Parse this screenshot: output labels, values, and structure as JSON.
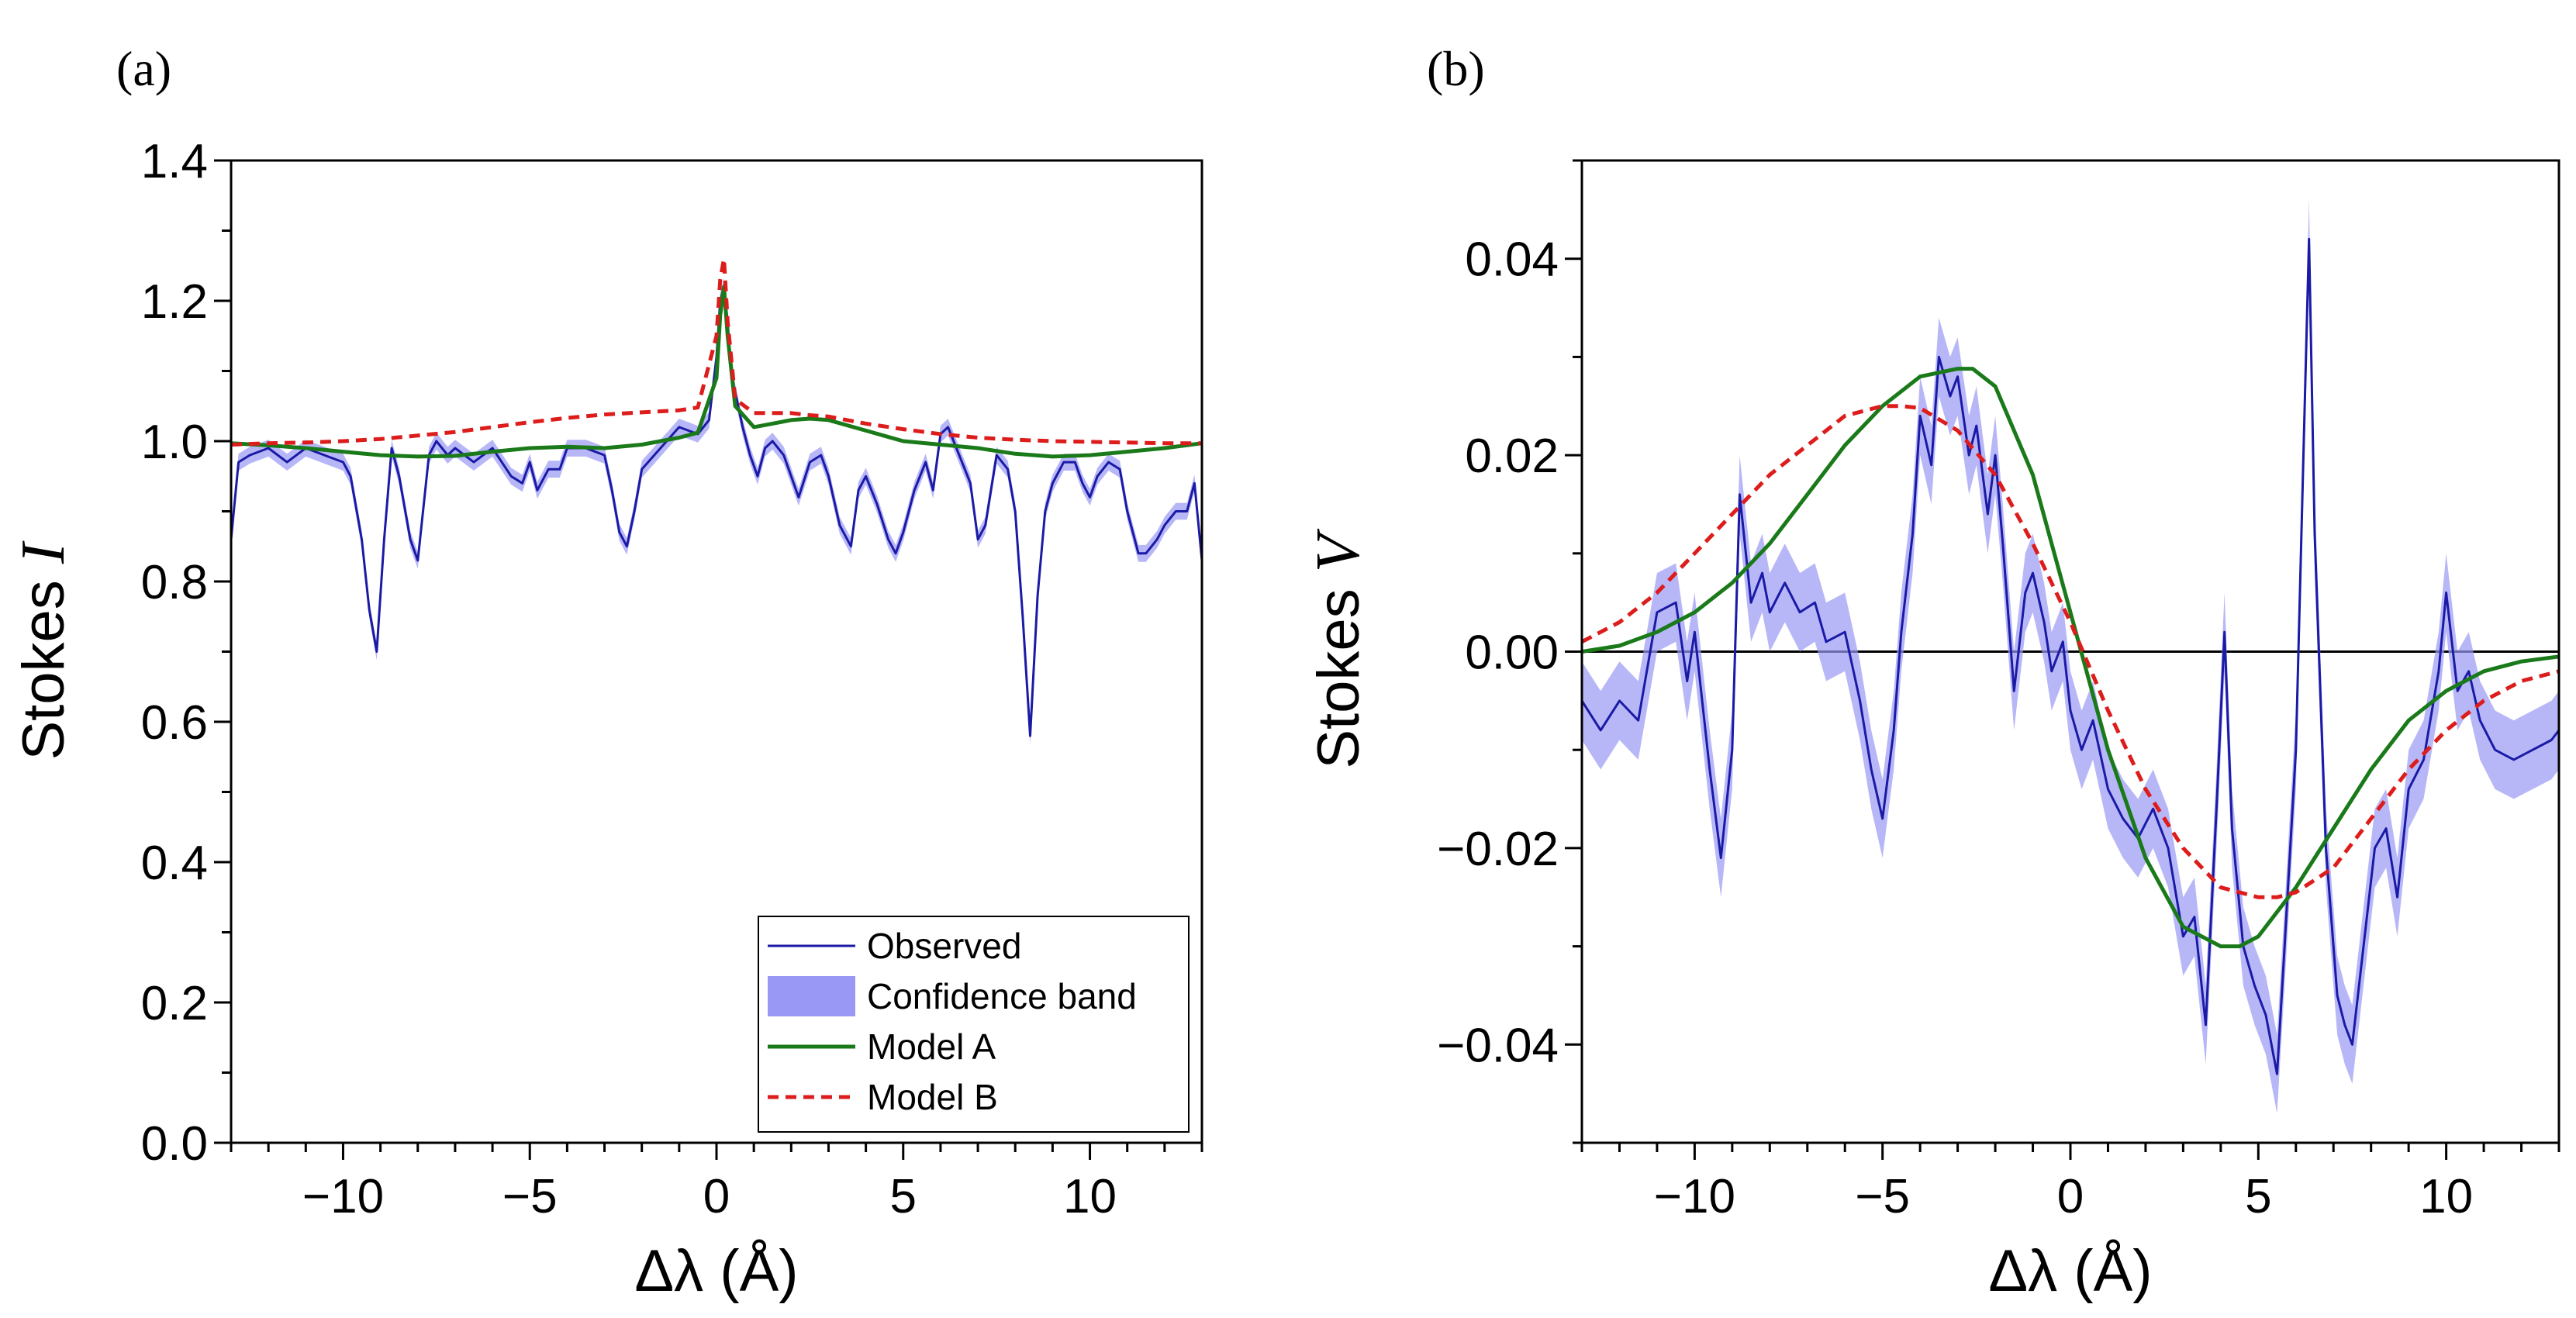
{
  "chart_data": [
    {
      "panel_label": "(a)",
      "type": "line",
      "xlabel": "Δλ (Å)",
      "ylabel_prefix": "Stokes",
      "ylabel_symbol": "I",
      "xlim": [
        -13,
        13
      ],
      "ylim": [
        0.0,
        1.4
      ],
      "xticks": [
        -10,
        -5,
        0,
        5,
        10
      ],
      "xtick_labels": [
        "−10",
        "−5",
        "0",
        "5",
        "10"
      ],
      "yticks": [
        0.0,
        0.2,
        0.4,
        0.6,
        0.8,
        1.0,
        1.2,
        1.4
      ],
      "ytick_labels": [
        "0.0",
        "0.2",
        "0.4",
        "0.6",
        "0.8",
        "1.0",
        "1.2",
        "1.4"
      ],
      "legend": {
        "placement": "bottom-right",
        "entries": [
          "Observed",
          "Confidence band",
          "Model A",
          "Model B"
        ]
      },
      "series": [
        {
          "name": "Observed",
          "color": "#1a1aa6",
          "x": [
            -13.0,
            -12.8,
            -12.5,
            -12.0,
            -11.5,
            -11.0,
            -10.5,
            -10.0,
            -9.8,
            -9.5,
            -9.3,
            -9.1,
            -8.9,
            -8.7,
            -8.5,
            -8.2,
            -8.0,
            -7.7,
            -7.5,
            -7.2,
            -7.0,
            -6.5,
            -6.0,
            -5.5,
            -5.2,
            -5.0,
            -4.8,
            -4.5,
            -4.2,
            -4.0,
            -3.5,
            -3.0,
            -2.8,
            -2.6,
            -2.4,
            -2.2,
            -2.0,
            -1.5,
            -1.0,
            -0.5,
            -0.2,
            0.0,
            0.1,
            0.2,
            0.3,
            0.4,
            0.5,
            0.7,
            0.9,
            1.1,
            1.3,
            1.5,
            1.8,
            2.0,
            2.2,
            2.5,
            2.8,
            3.0,
            3.3,
            3.6,
            3.8,
            4.0,
            4.3,
            4.6,
            4.8,
            5.0,
            5.3,
            5.6,
            5.8,
            6.0,
            6.2,
            6.5,
            6.8,
            7.0,
            7.2,
            7.5,
            7.8,
            8.0,
            8.2,
            8.4,
            8.6,
            8.8,
            9.0,
            9.3,
            9.6,
            9.8,
            10.0,
            10.2,
            10.5,
            10.8,
            11.0,
            11.3,
            11.5,
            11.8,
            12.0,
            12.3,
            12.6,
            12.8,
            13.0
          ],
          "values": [
            0.86,
            0.97,
            0.98,
            0.99,
            0.97,
            0.99,
            0.98,
            0.97,
            0.95,
            0.86,
            0.76,
            0.7,
            0.86,
            0.99,
            0.95,
            0.86,
            0.83,
            0.98,
            1.0,
            0.98,
            0.99,
            0.97,
            0.99,
            0.95,
            0.94,
            0.97,
            0.93,
            0.96,
            0.96,
            0.99,
            0.99,
            0.98,
            0.93,
            0.87,
            0.85,
            0.9,
            0.96,
            0.99,
            1.02,
            1.01,
            1.03,
            1.12,
            1.2,
            1.22,
            1.17,
            1.09,
            1.07,
            1.02,
            0.98,
            0.95,
            0.99,
            1.0,
            0.98,
            0.95,
            0.92,
            0.97,
            0.98,
            0.95,
            0.88,
            0.85,
            0.93,
            0.95,
            0.91,
            0.86,
            0.84,
            0.87,
            0.93,
            0.97,
            0.93,
            1.01,
            1.02,
            0.98,
            0.94,
            0.86,
            0.88,
            0.98,
            0.96,
            0.9,
            0.75,
            0.58,
            0.78,
            0.9,
            0.94,
            0.97,
            0.97,
            0.94,
            0.92,
            0.95,
            0.97,
            0.96,
            0.9,
            0.84,
            0.84,
            0.86,
            0.88,
            0.9,
            0.9,
            0.94,
            0.83
          ]
        },
        {
          "name": "Confidence band",
          "color": "#9999f5",
          "half_width": 0.012
        },
        {
          "name": "Model A",
          "color": "#1a7a1a",
          "x": [
            -13,
            -12,
            -11,
            -10,
            -9,
            -8,
            -7,
            -6,
            -5,
            -4,
            -3,
            -2,
            -1,
            -0.5,
            0.0,
            0.1,
            0.2,
            0.3,
            0.5,
            1.0,
            1.5,
            2.0,
            2.5,
            3.0,
            4.0,
            5.0,
            6.0,
            7.0,
            8.0,
            9.0,
            10.0,
            11.0,
            12.0,
            13.0
          ],
          "values": [
            0.997,
            0.994,
            0.99,
            0.985,
            0.98,
            0.978,
            0.979,
            0.985,
            0.99,
            0.992,
            0.99,
            0.995,
            1.005,
            1.012,
            1.09,
            1.18,
            1.22,
            1.15,
            1.05,
            1.02,
            1.025,
            1.03,
            1.032,
            1.03,
            1.015,
            1.0,
            0.995,
            0.99,
            0.982,
            0.978,
            0.98,
            0.985,
            0.99,
            0.997
          ]
        },
        {
          "name": "Model B",
          "color": "#dd1c1c",
          "x": [
            -13,
            -12,
            -11,
            -10,
            -9,
            -8,
            -7,
            -6,
            -5,
            -4,
            -3,
            -2,
            -1,
            -0.5,
            0.0,
            0.1,
            0.2,
            0.3,
            0.5,
            1.0,
            1.5,
            2.0,
            2.5,
            3.0,
            4.0,
            5.0,
            6.0,
            7.0,
            8.0,
            9.0,
            10.0,
            11.0,
            12.0,
            13.0
          ],
          "values": [
            0.995,
            0.997,
            0.998,
            1.0,
            1.003,
            1.008,
            1.013,
            1.02,
            1.027,
            1.033,
            1.038,
            1.041,
            1.044,
            1.048,
            1.15,
            1.23,
            1.26,
            1.17,
            1.06,
            1.04,
            1.04,
            1.04,
            1.037,
            1.035,
            1.025,
            1.017,
            1.01,
            1.005,
            1.002,
            1.0,
            0.999,
            0.998,
            0.997,
            0.997
          ]
        }
      ]
    },
    {
      "panel_label": "(b)",
      "type": "line",
      "xlabel": "Δλ (Å)",
      "ylabel_prefix": "Stokes",
      "ylabel_symbol": "V",
      "xlim": [
        -13,
        13
      ],
      "ylim": [
        -0.05,
        0.05
      ],
      "xticks": [
        -10,
        -5,
        0,
        5,
        10
      ],
      "xtick_labels": [
        "−10",
        "−5",
        "0",
        "5",
        "10"
      ],
      "yticks": [
        -0.04,
        -0.02,
        0.0,
        0.02,
        0.04
      ],
      "ytick_labels": [
        "−0.04",
        "−0.02",
        "0.00",
        "0.02",
        "0.04"
      ],
      "zero_line": true,
      "series": [
        {
          "name": "Observed",
          "color": "#1a1aa6",
          "x": [
            -13.0,
            -12.5,
            -12.0,
            -11.5,
            -11.0,
            -10.5,
            -10.2,
            -10.0,
            -9.6,
            -9.3,
            -9.0,
            -8.8,
            -8.5,
            -8.2,
            -8.0,
            -7.6,
            -7.2,
            -6.8,
            -6.5,
            -6.0,
            -5.6,
            -5.3,
            -5.0,
            -4.7,
            -4.5,
            -4.2,
            -4.0,
            -3.7,
            -3.5,
            -3.2,
            -3.0,
            -2.7,
            -2.5,
            -2.2,
            -2.0,
            -1.8,
            -1.5,
            -1.2,
            -1.0,
            -0.7,
            -0.5,
            -0.2,
            0.0,
            0.3,
            0.6,
            1.0,
            1.4,
            1.8,
            2.2,
            2.6,
            3.0,
            3.3,
            3.6,
            3.9,
            4.1,
            4.3,
            4.6,
            4.9,
            5.2,
            5.5,
            5.7,
            6.0,
            6.2,
            6.35,
            6.5,
            6.8,
            7.1,
            7.3,
            7.5,
            7.8,
            8.1,
            8.4,
            8.7,
            9.0,
            9.4,
            9.8,
            10.0,
            10.3,
            10.6,
            10.9,
            11.3,
            11.8,
            12.3,
            12.8,
            13.0
          ],
          "values": [
            -0.005,
            -0.008,
            -0.005,
            -0.007,
            0.004,
            0.005,
            -0.003,
            0.002,
            -0.012,
            -0.021,
            -0.01,
            0.016,
            0.005,
            0.008,
            0.004,
            0.007,
            0.004,
            0.005,
            0.001,
            0.002,
            -0.005,
            -0.012,
            -0.017,
            -0.008,
            0.002,
            0.012,
            0.024,
            0.019,
            0.03,
            0.026,
            0.028,
            0.02,
            0.023,
            0.014,
            0.02,
            0.011,
            -0.004,
            0.006,
            0.008,
            0.003,
            -0.002,
            0.001,
            -0.006,
            -0.01,
            -0.007,
            -0.014,
            -0.017,
            -0.019,
            -0.016,
            -0.02,
            -0.029,
            -0.027,
            -0.038,
            -0.015,
            0.002,
            -0.018,
            -0.03,
            -0.034,
            -0.037,
            -0.043,
            -0.03,
            -0.01,
            0.02,
            0.042,
            0.012,
            -0.02,
            -0.035,
            -0.038,
            -0.04,
            -0.03,
            -0.02,
            -0.018,
            -0.025,
            -0.014,
            -0.011,
            -0.002,
            0.006,
            -0.004,
            -0.002,
            -0.007,
            -0.01,
            -0.011,
            -0.01,
            -0.009,
            -0.008
          ]
        },
        {
          "name": "Confidence band",
          "color": "#9999f5",
          "half_width": 0.004
        },
        {
          "name": "Model A",
          "color": "#1a7a1a",
          "x": [
            -13,
            -12,
            -11,
            -10,
            -9,
            -8,
            -7,
            -6,
            -5,
            -4,
            -3,
            -2.6,
            -2,
            -1,
            0,
            1,
            2,
            3,
            4,
            4.5,
            5,
            6,
            7,
            8,
            9,
            10,
            11,
            12,
            13
          ],
          "values": [
            0.0,
            0.0006,
            0.002,
            0.004,
            0.007,
            0.011,
            0.016,
            0.021,
            0.025,
            0.028,
            0.0288,
            0.0288,
            0.027,
            0.018,
            0.004,
            -0.01,
            -0.021,
            -0.028,
            -0.03,
            -0.03,
            -0.029,
            -0.024,
            -0.018,
            -0.012,
            -0.007,
            -0.004,
            -0.002,
            -0.001,
            -0.0005
          ]
        },
        {
          "name": "Model B",
          "color": "#dd1c1c",
          "x": [
            -13,
            -12,
            -11,
            -10,
            -9,
            -8,
            -7,
            -6,
            -5,
            -4.5,
            -4,
            -3,
            -2,
            -1,
            0,
            1,
            2,
            3,
            4,
            5,
            5.5,
            6,
            7,
            8,
            9,
            10,
            11,
            12,
            13
          ],
          "values": [
            0.001,
            0.003,
            0.006,
            0.01,
            0.014,
            0.018,
            0.021,
            0.024,
            0.025,
            0.025,
            0.0248,
            0.0225,
            0.018,
            0.011,
            0.003,
            -0.006,
            -0.014,
            -0.02,
            -0.024,
            -0.025,
            -0.025,
            -0.0245,
            -0.022,
            -0.017,
            -0.012,
            -0.008,
            -0.005,
            -0.003,
            -0.002
          ]
        }
      ]
    }
  ]
}
